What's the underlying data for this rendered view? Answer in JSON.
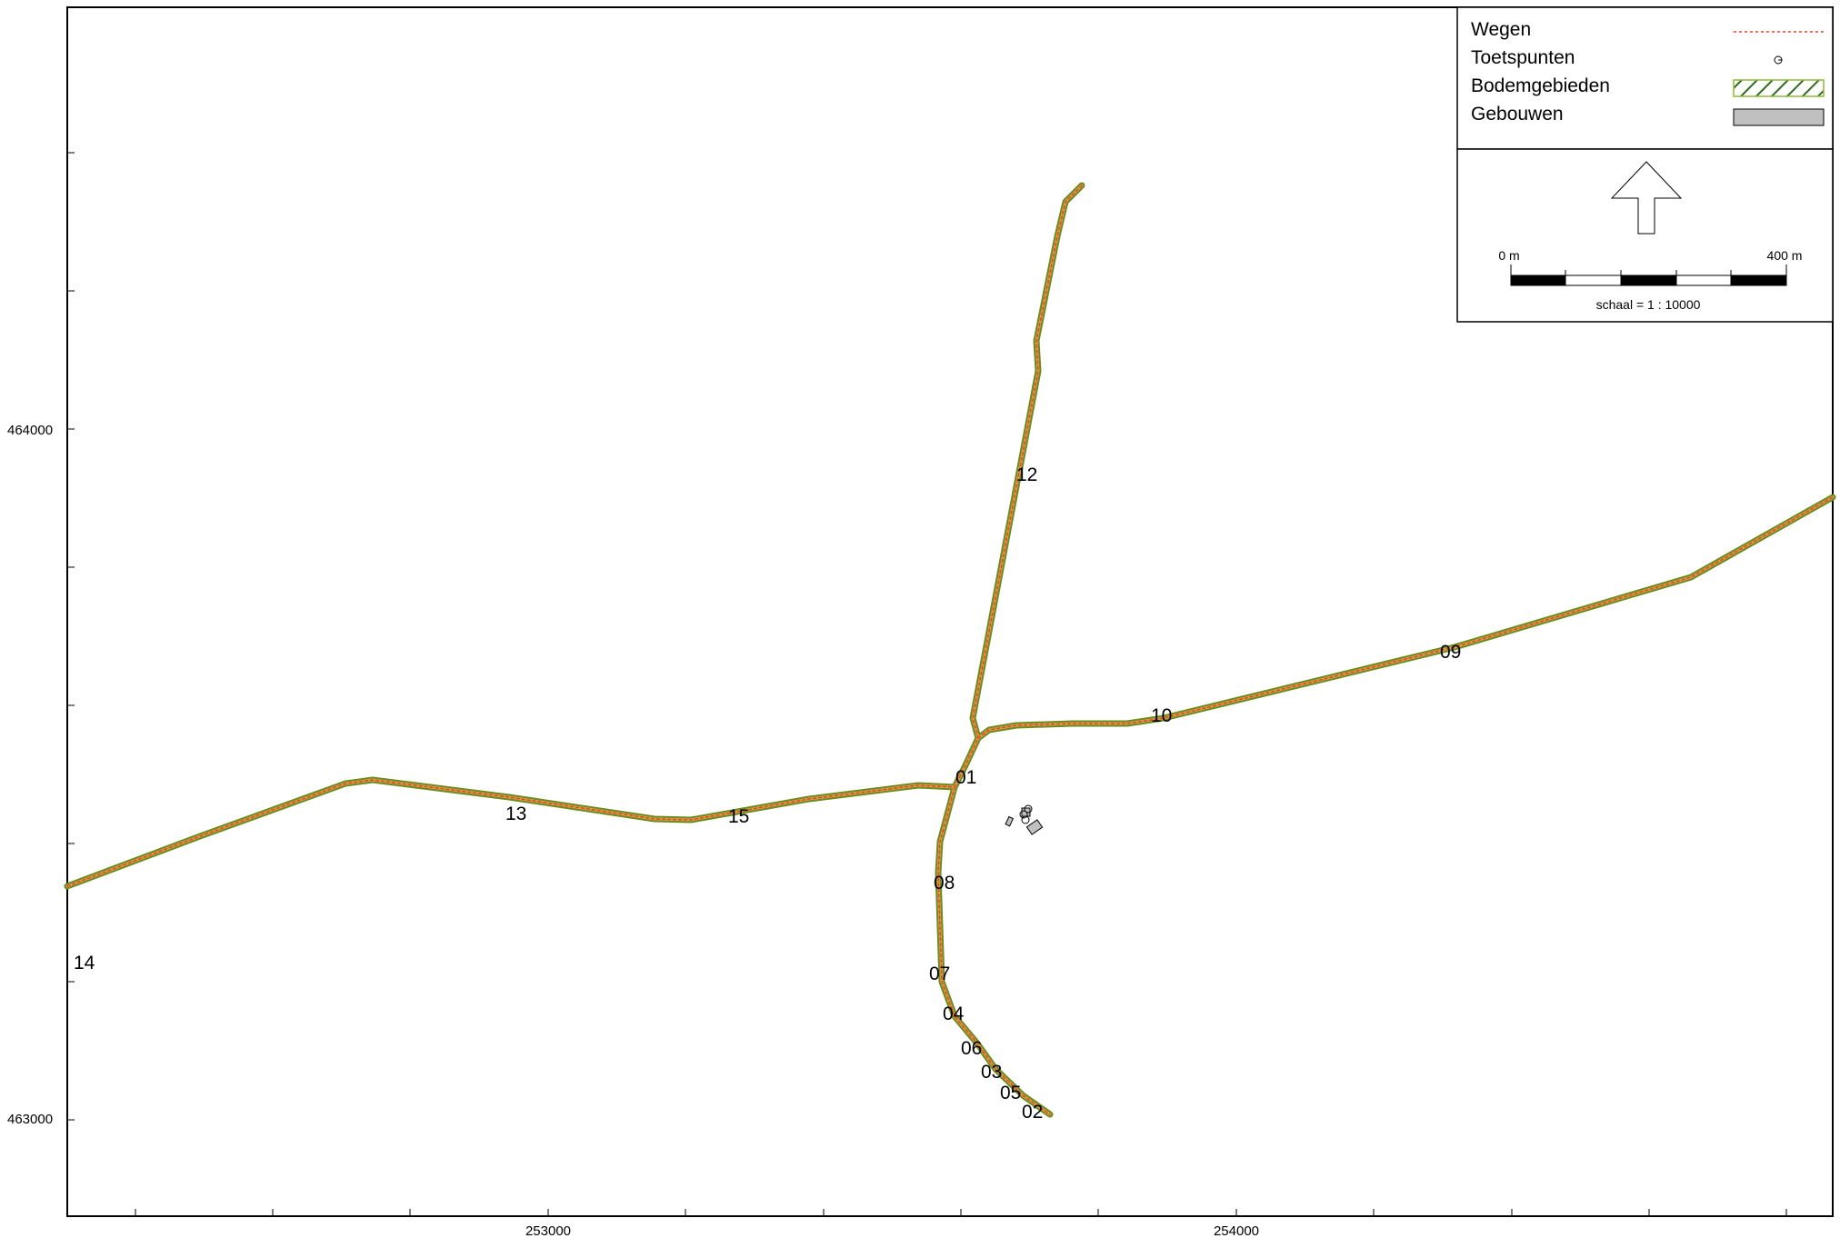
{
  "map": {
    "x_axis": {
      "ticks": [
        {
          "label": "253000",
          "value": 253000
        },
        {
          "label": "254000",
          "value": 254000
        }
      ]
    },
    "y_axis": {
      "ticks": [
        {
          "label": "464000",
          "value": 464000
        },
        {
          "label": "463000",
          "value": 463000
        }
      ]
    },
    "points": [
      {
        "id": "01",
        "label": "01"
      },
      {
        "id": "02",
        "label": "02"
      },
      {
        "id": "03",
        "label": "03"
      },
      {
        "id": "04",
        "label": "04"
      },
      {
        "id": "05",
        "label": "05"
      },
      {
        "id": "06",
        "label": "06"
      },
      {
        "id": "07",
        "label": "07"
      },
      {
        "id": "08",
        "label": "08"
      },
      {
        "id": "09",
        "label": "09"
      },
      {
        "id": "10",
        "label": "10"
      },
      {
        "id": "12",
        "label": "12"
      },
      {
        "id": "13",
        "label": "13"
      },
      {
        "id": "14",
        "label": "14"
      },
      {
        "id": "15",
        "label": "15"
      }
    ],
    "road_color": "#e8442a",
    "buffer_color": "#6a8c1f",
    "building_color": "#c0c0c0"
  },
  "legend": {
    "items": [
      {
        "label": "Wegen"
      },
      {
        "label": "Toetspunten"
      },
      {
        "label": "Bodemgebieden"
      },
      {
        "label": "Gebouwen"
      }
    ]
  },
  "scalebar": {
    "start_label": "0 m",
    "end_label": "400 m",
    "scale_text": "schaal = 1 : 10000"
  }
}
